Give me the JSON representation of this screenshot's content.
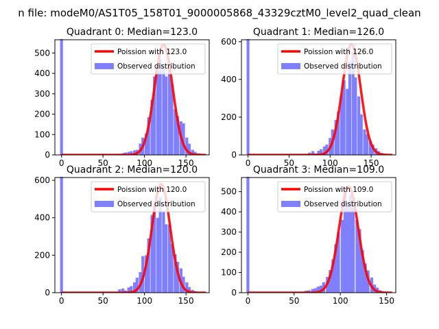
{
  "figure": {
    "suptitle": "n file: modeM0/AS1T05_158T01_9000005868_43329cztM0_level2_quad_clean"
  },
  "colors": {
    "poisson": "#ff0000",
    "observed": "#8080ff",
    "axes": "#000000",
    "legend_border": "#cccccc"
  },
  "chart_data": [
    {
      "type": "bar",
      "title": "Quadrant 0: Median=123.0",
      "median": 123.0,
      "xlim": [
        -8,
        178
      ],
      "ylim": [
        0,
        565
      ],
      "xticks": [
        0,
        50,
        100,
        150
      ],
      "yticks": [
        0,
        100,
        200,
        300,
        400,
        500
      ],
      "legend_position": "top-right",
      "legend": [
        "Poission with 123.0",
        "Observed distribution"
      ],
      "zero_spike": 620,
      "bin_width": 3.5,
      "observed_hist": [
        [
          63,
          1
        ],
        [
          67,
          3
        ],
        [
          70,
          5
        ],
        [
          74,
          8
        ],
        [
          77,
          12
        ],
        [
          81,
          15
        ],
        [
          84,
          18
        ],
        [
          88,
          22
        ],
        [
          91,
          25
        ],
        [
          95,
          55
        ],
        [
          98,
          85
        ],
        [
          102,
          105
        ],
        [
          105,
          185
        ],
        [
          109,
          270
        ],
        [
          112,
          385
        ],
        [
          116,
          410
        ],
        [
          119,
          470
        ],
        [
          123,
          445
        ],
        [
          126,
          385
        ],
        [
          130,
          435
        ],
        [
          133,
          350
        ],
        [
          137,
          225
        ],
        [
          140,
          190
        ],
        [
          144,
          165
        ],
        [
          147,
          155
        ],
        [
          151,
          85
        ],
        [
          154,
          55
        ],
        [
          158,
          25
        ],
        [
          161,
          15
        ],
        [
          165,
          8
        ],
        [
          168,
          4
        ]
      ],
      "poisson_peak": 540
    },
    {
      "type": "bar",
      "title": "Quadrant 1: Median=126.0",
      "median": 126.0,
      "xlim": [
        -8,
        180
      ],
      "ylim": [
        0,
        610
      ],
      "xticks": [
        0,
        50,
        100,
        150
      ],
      "yticks": [
        0,
        200,
        400,
        600
      ],
      "legend_position": "top-right",
      "legend": [
        "Poission with 126.0",
        "Observed distribution"
      ],
      "zero_spike": 640,
      "bin_width": 3.5,
      "observed_hist": [
        [
          68,
          3
        ],
        [
          72,
          5
        ],
        [
          75,
          12
        ],
        [
          79,
          20
        ],
        [
          82,
          8
        ],
        [
          86,
          22
        ],
        [
          89,
          30
        ],
        [
          93,
          45
        ],
        [
          96,
          55
        ],
        [
          100,
          90
        ],
        [
          103,
          135
        ],
        [
          107,
          185
        ],
        [
          110,
          230
        ],
        [
          114,
          320
        ],
        [
          117,
          395
        ],
        [
          121,
          350
        ],
        [
          124,
          495
        ],
        [
          128,
          545
        ],
        [
          131,
          410
        ],
        [
          135,
          310
        ],
        [
          138,
          215
        ],
        [
          142,
          135
        ],
        [
          145,
          110
        ],
        [
          149,
          75
        ],
        [
          152,
          55
        ],
        [
          156,
          35
        ],
        [
          159,
          20
        ],
        [
          163,
          10
        ],
        [
          166,
          5
        ],
        [
          170,
          2
        ]
      ],
      "poisson_peak": 585
    },
    {
      "type": "bar",
      "title": "Quadrant 2: Median=120.0",
      "median": 120.0,
      "xlim": [
        -8,
        178
      ],
      "ylim": [
        0,
        615
      ],
      "xticks": [
        0,
        50,
        100,
        150
      ],
      "yticks": [
        0,
        200,
        400,
        600
      ],
      "legend_position": "top-right",
      "legend": [
        "Poission with 120.0",
        "Observed distribution"
      ],
      "zero_spike": 640,
      "bin_width": 3.5,
      "observed_hist": [
        [
          63,
          3
        ],
        [
          67,
          5
        ],
        [
          70,
          18
        ],
        [
          74,
          22
        ],
        [
          77,
          12
        ],
        [
          81,
          28
        ],
        [
          84,
          35
        ],
        [
          88,
          55
        ],
        [
          91,
          80
        ],
        [
          95,
          110
        ],
        [
          98,
          195
        ],
        [
          102,
          200
        ],
        [
          105,
          290
        ],
        [
          109,
          415
        ],
        [
          112,
          465
        ],
        [
          116,
          400
        ],
        [
          119,
          510
        ],
        [
          123,
          435
        ],
        [
          126,
          365
        ],
        [
          130,
          365
        ],
        [
          133,
          260
        ],
        [
          137,
          205
        ],
        [
          140,
          165
        ],
        [
          144,
          130
        ],
        [
          147,
          85
        ],
        [
          151,
          55
        ],
        [
          154,
          30
        ],
        [
          158,
          15
        ],
        [
          161,
          8
        ],
        [
          165,
          4
        ]
      ],
      "poisson_peak": 580
    },
    {
      "type": "bar",
      "title": "Quadrant 3: Median=109.0",
      "median": 109.0,
      "xlim": [
        -7,
        160
      ],
      "ylim": [
        0,
        570
      ],
      "xticks": [
        0,
        50,
        100,
        150
      ],
      "yticks": [
        0,
        100,
        200,
        300,
        400,
        500
      ],
      "legend_position": "top-right",
      "legend": [
        "Poission with 109.0",
        "Observed distribution"
      ],
      "zero_spike": 640,
      "bin_width": 3.2,
      "observed_hist": [
        [
          57,
          3
        ],
        [
          60,
          5
        ],
        [
          63,
          10
        ],
        [
          66,
          12
        ],
        [
          70,
          18
        ],
        [
          73,
          22
        ],
        [
          76,
          30
        ],
        [
          79,
          35
        ],
        [
          82,
          52
        ],
        [
          86,
          78
        ],
        [
          89,
          112
        ],
        [
          92,
          165
        ],
        [
          95,
          240
        ],
        [
          98,
          300
        ],
        [
          102,
          360
        ],
        [
          105,
          520
        ],
        [
          108,
          430
        ],
        [
          111,
          485
        ],
        [
          114,
          445
        ],
        [
          118,
          360
        ],
        [
          121,
          315
        ],
        [
          124,
          210
        ],
        [
          127,
          145
        ],
        [
          130,
          110
        ],
        [
          134,
          75
        ],
        [
          137,
          40
        ],
        [
          140,
          25
        ],
        [
          143,
          12
        ],
        [
          146,
          6
        ],
        [
          150,
          3
        ]
      ],
      "poisson_peak": 525
    }
  ]
}
